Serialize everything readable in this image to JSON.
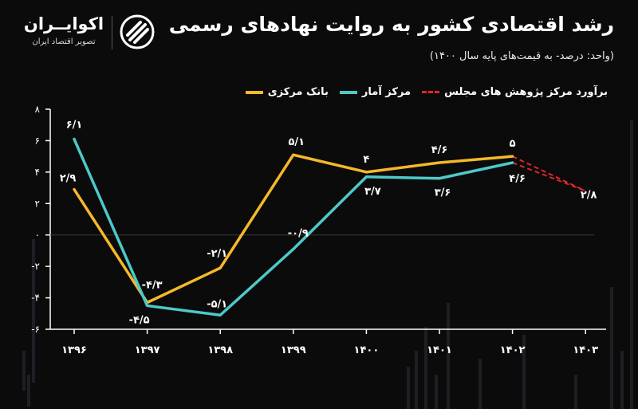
{
  "header": {
    "title": "رشد اقتصادی کشور به روایت نهادهای رسمی",
    "subtitle": "(واحد: درصد- به قیمت‌های پایه سال ۱۴۰۰)"
  },
  "logo": {
    "name": "اکوایــران",
    "tagline": "تصویر اقتصاد ایران",
    "icon": "ecoiran-logo-icon"
  },
  "colors": {
    "background": "#0b0b0b",
    "central_bank": "#f5b82a",
    "statistics_center": "#4ec9c9",
    "majlis_forecast": "#e0262b",
    "axis": "#ffffff"
  },
  "legend": [
    {
      "label": "بانک مرکزی",
      "color": "#f5b82a",
      "style": "solid"
    },
    {
      "label": "مرکز آمار",
      "color": "#4ec9c9",
      "style": "solid"
    },
    {
      "label": "برآورد مرکز پژوهش های مجلس",
      "color": "#e0262b",
      "style": "dashed"
    }
  ],
  "chart_data": {
    "type": "line",
    "x": [
      "۱۳۹۶",
      "۱۳۹۷",
      "۱۳۹۸",
      "۱۳۹۹",
      "۱۴۰۰",
      "۱۴۰۱",
      "۱۴۰۲",
      "۱۴۰۳"
    ],
    "ylim": [
      -6,
      8
    ],
    "yticks": [
      8,
      6,
      4,
      2,
      0,
      -2,
      -4,
      -6
    ],
    "ytick_labels": [
      "۸",
      "۶",
      "۴",
      "۲",
      "۰",
      "-۲",
      "-۴",
      "-۶"
    ],
    "grid": false,
    "legend_position": "top-right",
    "series": [
      {
        "name": "بانک مرکزی",
        "color": "#f5b82a",
        "values": [
          2.9,
          -4.3,
          -2.1,
          5.1,
          4.0,
          4.6,
          5.0,
          null
        ],
        "labels": [
          "۲/۹",
          "-۴/۳",
          "-۲/۱",
          "۵/۱",
          "۴",
          "۴/۶",
          "۵",
          ""
        ]
      },
      {
        "name": "مرکز آمار",
        "color": "#4ec9c9",
        "values": [
          6.1,
          -4.5,
          -5.1,
          -0.9,
          3.7,
          3.6,
          4.6,
          null
        ],
        "labels": [
          "۶/۱",
          "-۴/۵",
          "-۵/۱",
          "-۰/۹",
          "۳/۷",
          "۳/۶",
          "۴/۶",
          ""
        ]
      },
      {
        "name": "برآورد مرکز پژوهش های مجلس",
        "color": "#e0262b",
        "style": "dashed",
        "segments": [
          {
            "from_index": 6,
            "from_value": 5.0,
            "to_index": 7,
            "to_value": 2.8
          },
          {
            "from_index": 6,
            "from_value": 4.6,
            "to_index": 7,
            "to_value": 2.8
          }
        ],
        "end_label": "۲/۸"
      }
    ]
  }
}
